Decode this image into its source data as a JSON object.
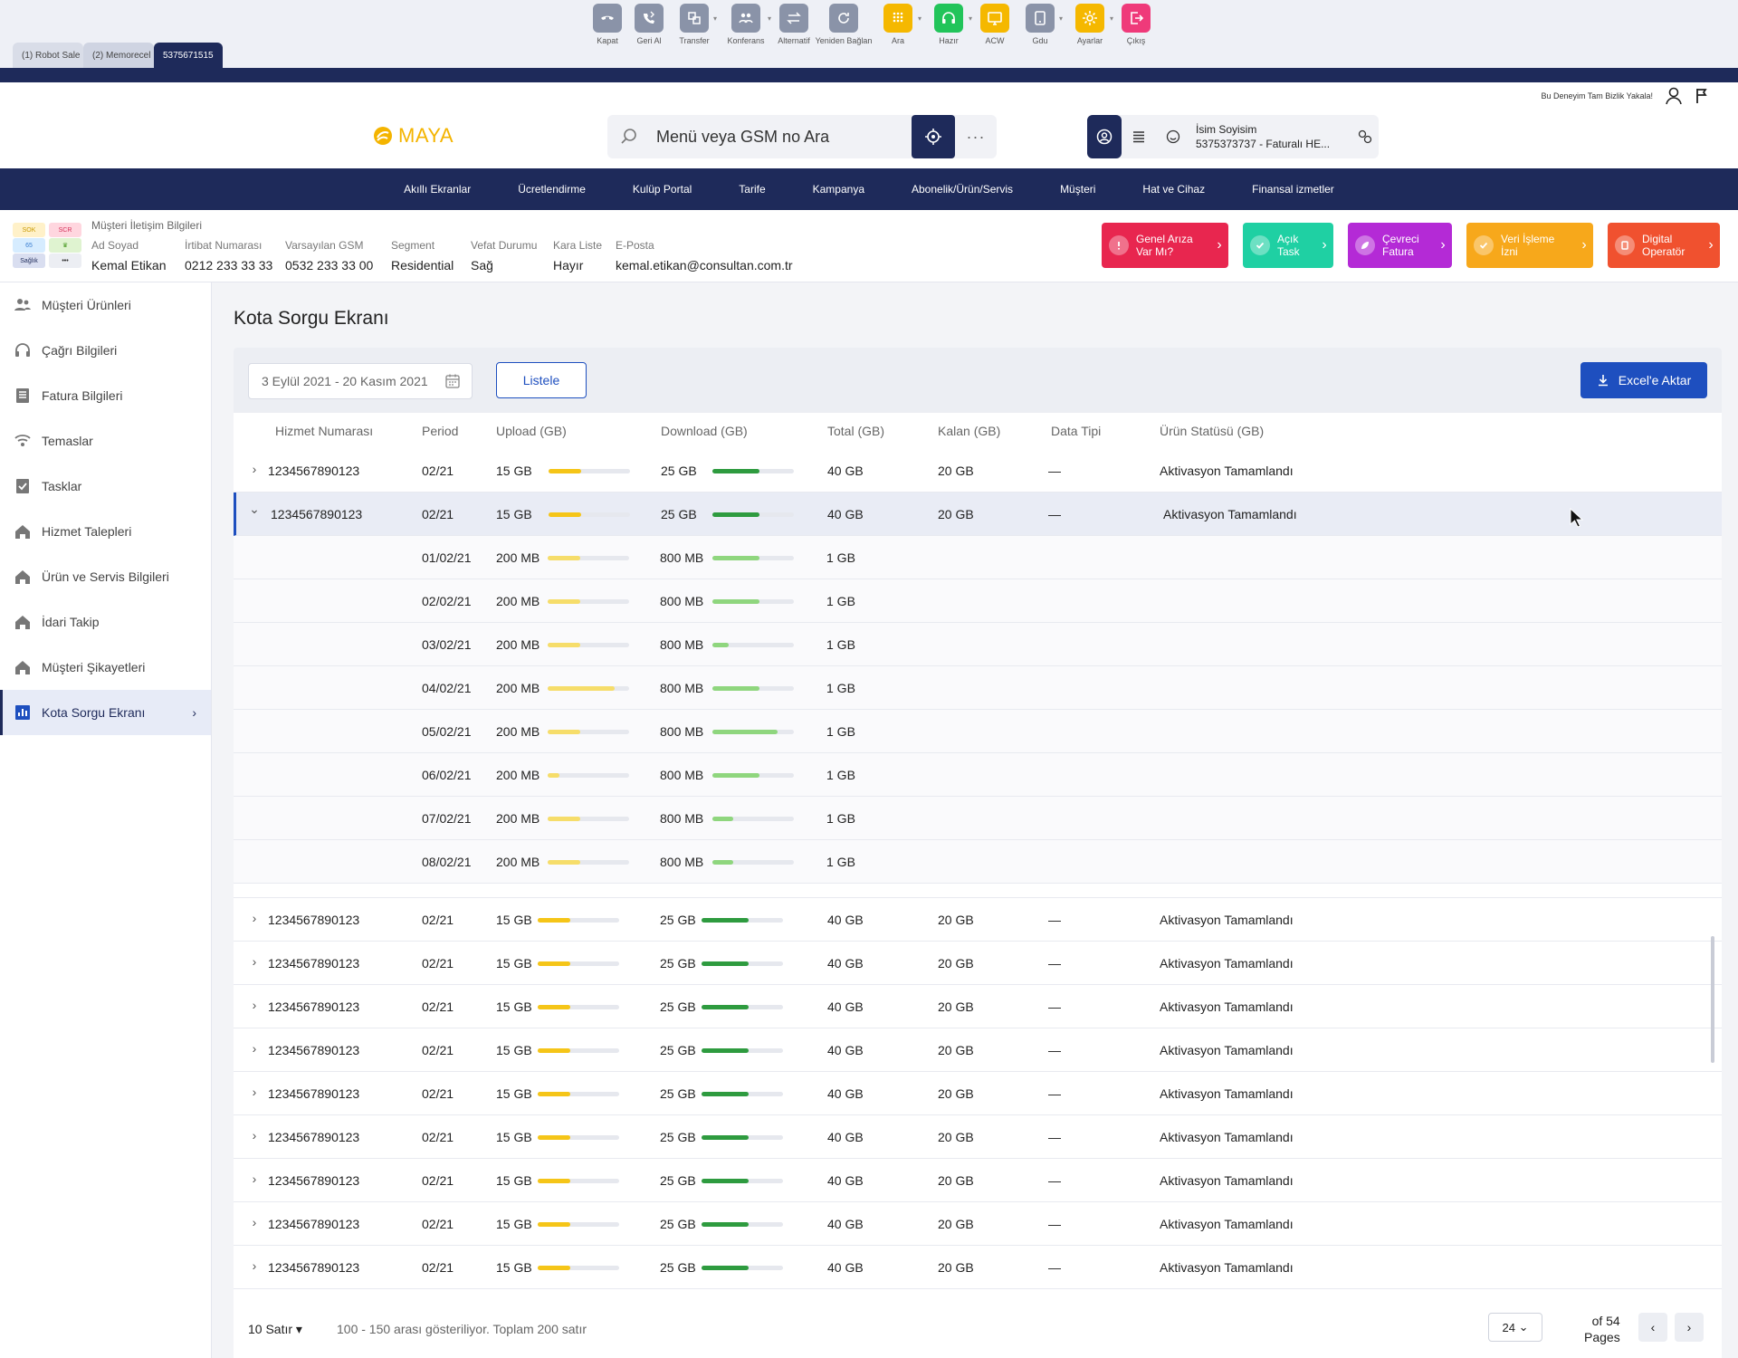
{
  "toolbar": {
    "tools": [
      {
        "label": "Kapat",
        "icon": "phone-close-icon",
        "color": "#8a93a8",
        "dropdown": false
      },
      {
        "label": "Geri Al",
        "icon": "phone-return-icon",
        "color": "#8a93a8",
        "dropdown": false
      },
      {
        "label": "Transfer",
        "icon": "transfer-icon",
        "color": "#8a93a8",
        "dropdown": true
      },
      {
        "label": "Konferans",
        "icon": "conference-icon",
        "color": "#8a93a8",
        "dropdown": true
      },
      {
        "label": "Alternatif",
        "icon": "swap-icon",
        "color": "#8a93a8",
        "dropdown": false
      },
      {
        "label": "Yeniden Bağlan",
        "icon": "reconnect-icon",
        "color": "#8a93a8",
        "dropdown": false
      },
      {
        "label": "Ara",
        "icon": "dialpad-icon",
        "color": "#f5b800",
        "dropdown": true
      },
      {
        "label": "Hazır",
        "icon": "headset-icon",
        "color": "#21c45a",
        "dropdown": true
      },
      {
        "label": "ACW",
        "icon": "monitor-icon",
        "color": "#f5b800",
        "dropdown": false
      },
      {
        "label": "Gdu",
        "icon": "tablet-icon",
        "color": "#8a93a8",
        "dropdown": true
      },
      {
        "label": "Ayarlar",
        "icon": "gear-icon",
        "color": "#f5b800",
        "dropdown": true
      },
      {
        "label": "Çıkış",
        "icon": "logout-icon",
        "color": "#ef3a7a",
        "dropdown": false
      }
    ],
    "tabs": [
      "(1) Robot Sale",
      "(2) Memorecel",
      "5375671515"
    ]
  },
  "header": {
    "promo": "Bu Deneyim Tam Bizlik Yakala!",
    "logo": "MAYA",
    "search_placeholder": "Menü veya GSM no Ara",
    "user_name": "İsim Soyisim",
    "user_sub": "5375373737 - Faturalı HE..."
  },
  "nav": [
    "Akıllı Ekranlar",
    "Ücretlendirme",
    "Kulüp Portal",
    "Tarife",
    "Kampanya",
    "Abonelik/Ürün/Servis",
    "Müşteri",
    "Hat ve Cihaz",
    "Finansal izmetler"
  ],
  "customer": {
    "title": "Müşteri İletişim Bilgileri",
    "mini": [
      "SOK",
      "SCR",
      "65",
      "",
      "Sağlık",
      "•••"
    ],
    "fields": [
      {
        "label": "Ad Soyad",
        "value": "Kemal Etikan"
      },
      {
        "label": "İrtibat Numarası",
        "value": "0212 233 33 33"
      },
      {
        "label": "Varsayılan GSM",
        "value": "0532 233 33 00"
      },
      {
        "label": "Segment",
        "value": "Residential"
      },
      {
        "label": "Vefat Durumu",
        "value": "Sağ"
      },
      {
        "label": "Kara Liste",
        "value": "Hayır"
      },
      {
        "label": "E-Posta",
        "value": "kemal.etikan@consultan.com.tr"
      }
    ],
    "quick": [
      {
        "l1": "Genel Arıza",
        "l2": "Var Mı?",
        "color": "#e8264f",
        "icon": "alert-icon"
      },
      {
        "l1": "Açık",
        "l2": "Task",
        "color": "#1fd0a3",
        "icon": "check-icon"
      },
      {
        "l1": "Çevreci",
        "l2": "Fatura",
        "color": "#b42ad6",
        "icon": "leaf-icon"
      },
      {
        "l1": "Veri İşleme",
        "l2": "İzni",
        "color": "#f7a81b",
        "icon": "consent-icon"
      },
      {
        "l1": "Digital",
        "l2": "Operatör",
        "color": "#f0512f",
        "icon": "digital-icon"
      }
    ]
  },
  "sidebar": [
    {
      "label": "Müşteri Ürünleri",
      "icon": "users-icon"
    },
    {
      "label": "Çağrı Bilgileri",
      "icon": "headset-icon"
    },
    {
      "label": "Fatura Bilgileri",
      "icon": "invoice-icon"
    },
    {
      "label": "Temaslar",
      "icon": "contact-icon"
    },
    {
      "label": "Tasklar",
      "icon": "task-icon"
    },
    {
      "label": "Hizmet Talepleri",
      "icon": "home-icon"
    },
    {
      "label": "Ürün ve Servis Bilgileri",
      "icon": "home-icon"
    },
    {
      "label": "İdari Takip",
      "icon": "home-icon"
    },
    {
      "label": "Müşteri Şikayetleri",
      "icon": "home-icon"
    },
    {
      "label": "Kota Sorgu Ekranı",
      "icon": "chart-icon",
      "active": true
    }
  ],
  "main": {
    "title": "Kota Sorgu Ekranı",
    "date_range": "3 Eylül 2021 - 20 Kasım 2021",
    "list_button": "Listele",
    "excel_button": "Excel'e Aktar",
    "columns": [
      "Hizmet Numarası",
      "Period",
      "Upload (GB)",
      "Download (GB)",
      "Total (GB)",
      "Kalan (GB)",
      "Data Tipi",
      "Ürün Statüsü (GB)"
    ],
    "main_row": {
      "service": "1234567890123",
      "period": "02/21",
      "upload": "15 GB",
      "upload_pct": 0.4,
      "download": "25 GB",
      "download_pct": 0.58,
      "total": "40 GB",
      "remaining": "20 GB",
      "data_type": "—",
      "status": "Aktivasyon Tamamlandı"
    },
    "sub_rows": [
      {
        "date": "01/02/21",
        "upload": "200 MB",
        "upload_pct": 0.4,
        "download": "800 MB",
        "download_pct": 0.58,
        "total": "1 GB"
      },
      {
        "date": "02/02/21",
        "upload": "200 MB",
        "upload_pct": 0.4,
        "download": "800 MB",
        "download_pct": 0.58,
        "total": "1 GB"
      },
      {
        "date": "03/02/21",
        "upload": "200 MB",
        "upload_pct": 0.4,
        "download": "800 MB",
        "download_pct": 0.2,
        "total": "1 GB"
      },
      {
        "date": "04/02/21",
        "upload": "200 MB",
        "upload_pct": 0.82,
        "download": "800 MB",
        "download_pct": 0.58,
        "total": "1 GB"
      },
      {
        "date": "05/02/21",
        "upload": "200 MB",
        "upload_pct": 0.4,
        "download": "800 MB",
        "download_pct": 0.8,
        "total": "1 GB"
      },
      {
        "date": "06/02/21",
        "upload": "200 MB",
        "upload_pct": 0.14,
        "download": "800 MB",
        "download_pct": 0.58,
        "total": "1 GB"
      },
      {
        "date": "07/02/21",
        "upload": "200 MB",
        "upload_pct": 0.4,
        "download": "800 MB",
        "download_pct": 0.26,
        "total": "1 GB"
      },
      {
        "date": "08/02/21",
        "upload": "200 MB",
        "upload_pct": 0.4,
        "download": "800 MB",
        "download_pct": 0.26,
        "total": "1 GB"
      }
    ],
    "collapsed_rows_after": 9,
    "footer": {
      "rows_label": "10 Satır",
      "showing": "100 - 150 arası gösteriliyor. Toplam 200 satır",
      "page": "24",
      "of": "of 54",
      "pages": "Pages"
    }
  },
  "colors": {
    "navy": "#1e2a5a",
    "blue": "#1e4fbf",
    "yellow": "#f5c518",
    "green": "#2e9b3f",
    "light_yellow": "#f6dd6a",
    "light_green": "#8fd67e"
  }
}
